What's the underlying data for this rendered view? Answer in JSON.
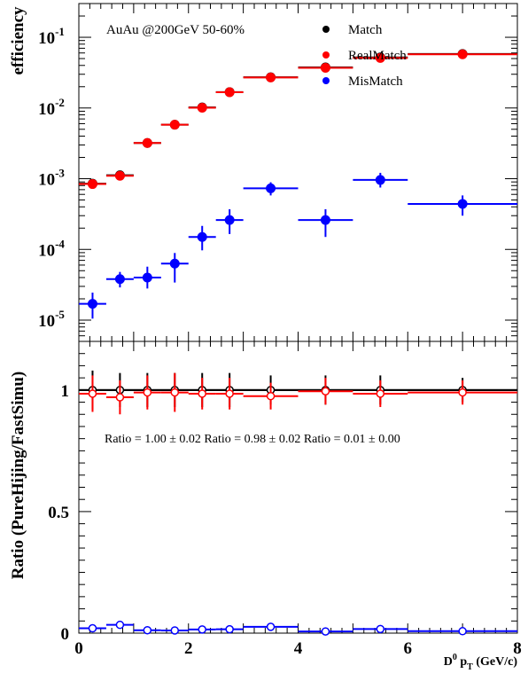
{
  "chart_data": [
    {
      "type": "scatter",
      "panel": "top",
      "ylabel": "efficiency",
      "yscale": "log",
      "xlim": [
        0,
        8
      ],
      "ylim": [
        5e-06,
        0.3
      ],
      "yticks": [
        {
          "value": 1e-05,
          "base": "10",
          "exp": "-5"
        },
        {
          "value": 0.0001,
          "base": "10",
          "exp": "-4"
        },
        {
          "value": 0.001,
          "base": "10",
          "exp": "-3"
        },
        {
          "value": 0.01,
          "base": "10",
          "exp": "-2"
        },
        {
          "value": 0.1,
          "base": "10",
          "exp": "-1"
        }
      ],
      "annotation": "AuAu @200GeV  50-60%",
      "legend_position": "top-right",
      "series": [
        {
          "name": "Match",
          "color": "#000000",
          "marker": "filled-circle",
          "points": [
            {
              "x": 0.25,
              "xerr": 0.25,
              "y": 0.00085,
              "ylo": 0.00075,
              "yhi": 0.00095
            },
            {
              "x": 0.75,
              "xerr": 0.25,
              "y": 0.00112,
              "ylo": 0.00102,
              "yhi": 0.00122
            },
            {
              "x": 1.25,
              "xerr": 0.25,
              "y": 0.0032,
              "ylo": 0.003,
              "yhi": 0.0034
            },
            {
              "x": 1.75,
              "xerr": 0.25,
              "y": 0.0058,
              "ylo": 0.0055,
              "yhi": 0.0061
            },
            {
              "x": 2.25,
              "xerr": 0.25,
              "y": 0.0102,
              "ylo": 0.0098,
              "yhi": 0.0106
            },
            {
              "x": 2.75,
              "xerr": 0.25,
              "y": 0.0168,
              "ylo": 0.0162,
              "yhi": 0.0174
            },
            {
              "x": 3.5,
              "xerr": 0.5,
              "y": 0.0272,
              "ylo": 0.0265,
              "yhi": 0.0279
            },
            {
              "x": 4.5,
              "xerr": 0.5,
              "y": 0.0375,
              "ylo": 0.0365,
              "yhi": 0.0385
            },
            {
              "x": 5.5,
              "xerr": 0.5,
              "y": 0.052,
              "ylo": 0.05,
              "yhi": 0.054
            },
            {
              "x": 7.0,
              "xerr": 1.0,
              "y": 0.058,
              "ylo": 0.056,
              "yhi": 0.06
            }
          ]
        },
        {
          "name": "RealMatch",
          "color": "#ff0000",
          "marker": "filled-circle",
          "points": [
            {
              "x": 0.25,
              "xerr": 0.25,
              "y": 0.00084,
              "ylo": 0.00074,
              "yhi": 0.00094
            },
            {
              "x": 0.75,
              "xerr": 0.25,
              "y": 0.0011,
              "ylo": 0.001,
              "yhi": 0.0012
            },
            {
              "x": 1.25,
              "xerr": 0.25,
              "y": 0.0032,
              "ylo": 0.003,
              "yhi": 0.0034
            },
            {
              "x": 1.75,
              "xerr": 0.25,
              "y": 0.0058,
              "ylo": 0.0055,
              "yhi": 0.0061
            },
            {
              "x": 2.25,
              "xerr": 0.25,
              "y": 0.0101,
              "ylo": 0.0097,
              "yhi": 0.0105
            },
            {
              "x": 2.75,
              "xerr": 0.25,
              "y": 0.0167,
              "ylo": 0.0161,
              "yhi": 0.0173
            },
            {
              "x": 3.5,
              "xerr": 0.5,
              "y": 0.027,
              "ylo": 0.0263,
              "yhi": 0.0277
            },
            {
              "x": 4.5,
              "xerr": 0.5,
              "y": 0.037,
              "ylo": 0.036,
              "yhi": 0.038
            },
            {
              "x": 5.5,
              "xerr": 0.5,
              "y": 0.051,
              "ylo": 0.049,
              "yhi": 0.053
            },
            {
              "x": 7.0,
              "xerr": 1.0,
              "y": 0.0575,
              "ylo": 0.0555,
              "yhi": 0.0595
            }
          ]
        },
        {
          "name": "MisMatch",
          "color": "#0000ff",
          "marker": "filled-circle",
          "points": [
            {
              "x": 0.25,
              "xerr": 0.25,
              "y": 1.7e-05,
              "ylo": 1.05e-05,
              "yhi": 2.45e-05
            },
            {
              "x": 0.75,
              "xerr": 0.25,
              "y": 3.8e-05,
              "ylo": 2.9e-05,
              "yhi": 4.8e-05
            },
            {
              "x": 1.25,
              "xerr": 0.25,
              "y": 4e-05,
              "ylo": 2.8e-05,
              "yhi": 5.7e-05
            },
            {
              "x": 1.75,
              "xerr": 0.25,
              "y": 6.3e-05,
              "ylo": 3.4e-05,
              "yhi": 8.9e-05
            },
            {
              "x": 2.25,
              "xerr": 0.25,
              "y": 0.00015,
              "ylo": 9.7e-05,
              "yhi": 0.000215
            },
            {
              "x": 2.75,
              "xerr": 0.25,
              "y": 0.00026,
              "ylo": 0.000165,
              "yhi": 0.00037
            },
            {
              "x": 3.5,
              "xerr": 0.5,
              "y": 0.00073,
              "ylo": 0.00058,
              "yhi": 0.00089
            },
            {
              "x": 4.5,
              "xerr": 0.5,
              "y": 0.00026,
              "ylo": 0.00015,
              "yhi": 0.00037
            },
            {
              "x": 5.5,
              "xerr": 0.5,
              "y": 0.00096,
              "ylo": 0.00075,
              "yhi": 0.00121
            },
            {
              "x": 7.0,
              "xerr": 1.0,
              "y": 0.00044,
              "ylo": 0.0003,
              "yhi": 0.00058
            }
          ]
        }
      ]
    },
    {
      "type": "scatter",
      "panel": "bottom",
      "ylabel": "Ratio (PureHijing/FastSimu)",
      "xlabel": {
        "main": "D",
        "sup": "0",
        "mid": " p",
        "sub": "T",
        "tail": " (GeV/c)"
      },
      "xlim": [
        0,
        8
      ],
      "ylim": [
        0,
        1.2
      ],
      "xticks": [
        "0",
        "2",
        "4",
        "6",
        "8"
      ],
      "yticks": [
        "0",
        "0.5",
        "1"
      ],
      "annotation": "Ratio = 1.00 ± 0.02  Ratio = 0.98 ± 0.02  Ratio = 0.01 ± 0.00",
      "reference_line": 1.0,
      "series": [
        {
          "name": "",
          "color": "#000000",
          "marker": "open-circle",
          "points": [
            {
              "x": 0.25,
              "xerr": 0.25,
              "y": 1.0,
              "ylo": 0.92,
              "yhi": 1.08
            },
            {
              "x": 0.75,
              "xerr": 0.25,
              "y": 1.0,
              "ylo": 0.93,
              "yhi": 1.07
            },
            {
              "x": 1.25,
              "xerr": 0.25,
              "y": 1.0,
              "ylo": 0.93,
              "yhi": 1.07
            },
            {
              "x": 1.75,
              "xerr": 0.25,
              "y": 1.0,
              "ylo": 0.93,
              "yhi": 1.07
            },
            {
              "x": 2.25,
              "xerr": 0.25,
              "y": 1.0,
              "ylo": 0.93,
              "yhi": 1.07
            },
            {
              "x": 2.75,
              "xerr": 0.25,
              "y": 1.0,
              "ylo": 0.93,
              "yhi": 1.07
            },
            {
              "x": 3.5,
              "xerr": 0.5,
              "y": 1.0,
              "ylo": 0.94,
              "yhi": 1.06
            },
            {
              "x": 4.5,
              "xerr": 0.5,
              "y": 1.0,
              "ylo": 0.94,
              "yhi": 1.06
            },
            {
              "x": 5.5,
              "xerr": 0.5,
              "y": 1.0,
              "ylo": 0.94,
              "yhi": 1.06
            },
            {
              "x": 7.0,
              "xerr": 1.0,
              "y": 1.0,
              "ylo": 0.95,
              "yhi": 1.05
            }
          ]
        },
        {
          "name": "",
          "color": "#ff0000",
          "marker": "open-circle",
          "points": [
            {
              "x": 0.25,
              "xerr": 0.25,
              "y": 0.985,
              "ylo": 0.91,
              "yhi": 1.06
            },
            {
              "x": 0.75,
              "xerr": 0.25,
              "y": 0.97,
              "ylo": 0.9,
              "yhi": 1.04
            },
            {
              "x": 1.25,
              "xerr": 0.25,
              "y": 0.99,
              "ylo": 0.92,
              "yhi": 1.06
            },
            {
              "x": 1.75,
              "xerr": 0.25,
              "y": 0.99,
              "ylo": 0.91,
              "yhi": 1.07
            },
            {
              "x": 2.25,
              "xerr": 0.25,
              "y": 0.985,
              "ylo": 0.92,
              "yhi": 1.05
            },
            {
              "x": 2.75,
              "xerr": 0.25,
              "y": 0.985,
              "ylo": 0.92,
              "yhi": 1.05
            },
            {
              "x": 3.5,
              "xerr": 0.5,
              "y": 0.975,
              "ylo": 0.92,
              "yhi": 1.03
            },
            {
              "x": 4.5,
              "xerr": 0.5,
              "y": 0.995,
              "ylo": 0.94,
              "yhi": 1.05
            },
            {
              "x": 5.5,
              "xerr": 0.5,
              "y": 0.985,
              "ylo": 0.93,
              "yhi": 1.04
            },
            {
              "x": 7.0,
              "xerr": 1.0,
              "y": 0.99,
              "ylo": 0.94,
              "yhi": 1.04
            }
          ]
        },
        {
          "name": "",
          "color": "#0000ff",
          "marker": "open-circle",
          "points": [
            {
              "x": 0.25,
              "xerr": 0.25,
              "y": 0.02,
              "ylo": 0.012,
              "yhi": 0.028
            },
            {
              "x": 0.75,
              "xerr": 0.25,
              "y": 0.034,
              "ylo": 0.026,
              "yhi": 0.042
            },
            {
              "x": 1.25,
              "xerr": 0.25,
              "y": 0.012,
              "ylo": 0.006,
              "yhi": 0.018
            },
            {
              "x": 1.75,
              "xerr": 0.25,
              "y": 0.011,
              "ylo": 0.005,
              "yhi": 0.017
            },
            {
              "x": 2.25,
              "xerr": 0.25,
              "y": 0.015,
              "ylo": 0.009,
              "yhi": 0.021
            },
            {
              "x": 2.75,
              "xerr": 0.25,
              "y": 0.016,
              "ylo": 0.01,
              "yhi": 0.022
            },
            {
              "x": 3.5,
              "xerr": 0.5,
              "y": 0.026,
              "ylo": 0.02,
              "yhi": 0.032
            },
            {
              "x": 4.5,
              "xerr": 0.5,
              "y": 0.007,
              "ylo": 0.003,
              "yhi": 0.011
            },
            {
              "x": 5.5,
              "xerr": 0.5,
              "y": 0.017,
              "ylo": 0.011,
              "yhi": 0.023
            },
            {
              "x": 7.0,
              "xerr": 1.0,
              "y": 0.008,
              "ylo": 0.004,
              "yhi": 0.012
            }
          ]
        }
      ]
    }
  ]
}
